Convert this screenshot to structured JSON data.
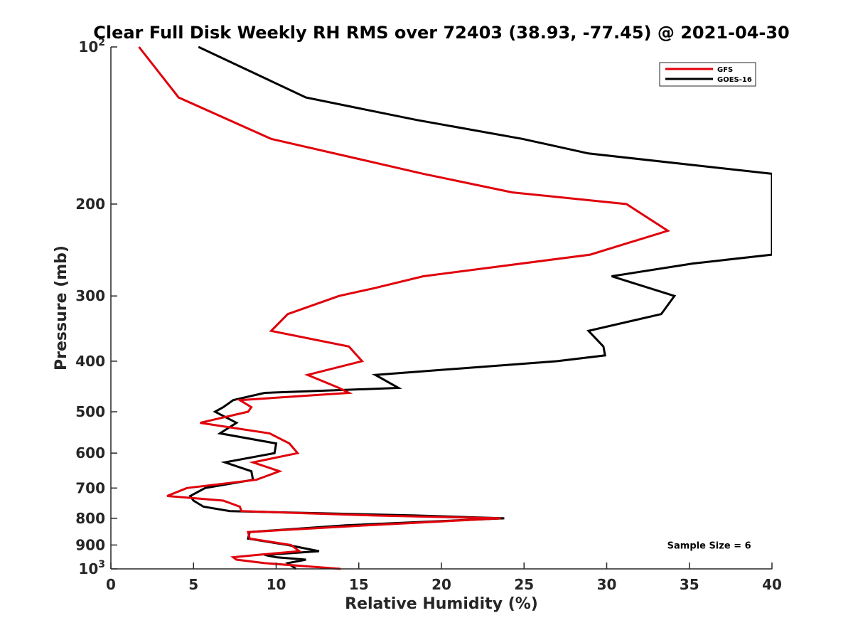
{
  "chart_data": {
    "type": "line",
    "title": "Clear Full Disk Weekly RH RMS over 72403 (38.93, -77.45) @ 2021-04-30",
    "xlabel": "Relative Humidity (%)",
    "ylabel": "Pressure (mb)",
    "xlim": [
      0,
      40
    ],
    "ylim": [
      100,
      1000
    ],
    "y_scale": "log",
    "y_reversed": true,
    "grid": false,
    "legend_position": "top-right",
    "x_ticks": [
      0,
      5,
      10,
      15,
      20,
      25,
      30,
      35,
      40
    ],
    "x_tick_labels": [
      "0",
      "5",
      "10",
      "15",
      "20",
      "25",
      "30",
      "35",
      "40"
    ],
    "y_ticks": [
      100,
      200,
      300,
      400,
      500,
      600,
      700,
      800,
      900,
      1000
    ],
    "y_tick_labels": [
      {
        "base": "10",
        "exp": "2"
      },
      {
        "base": "200",
        "exp": ""
      },
      {
        "base": "300",
        "exp": ""
      },
      {
        "base": "400",
        "exp": ""
      },
      {
        "base": "500",
        "exp": ""
      },
      {
        "base": "600",
        "exp": ""
      },
      {
        "base": "700",
        "exp": ""
      },
      {
        "base": "800",
        "exp": ""
      },
      {
        "base": "900",
        "exp": ""
      },
      {
        "base": "10",
        "exp": "3"
      }
    ],
    "series": [
      {
        "name": "GFS",
        "color": "#e0000b",
        "points": [
          [
            1.7,
            100
          ],
          [
            4.1,
            125
          ],
          [
            9.7,
            150
          ],
          [
            18.9,
            175
          ],
          [
            24.3,
            190
          ],
          [
            31.2,
            200
          ],
          [
            33.7,
            225
          ],
          [
            29.0,
            250
          ],
          [
            18.9,
            275
          ],
          [
            15.9,
            290
          ],
          [
            13.8,
            300
          ],
          [
            10.7,
            325
          ],
          [
            9.7,
            350
          ],
          [
            14.4,
            375
          ],
          [
            15.2,
            400
          ],
          [
            11.9,
            425
          ],
          [
            13.8,
            450
          ],
          [
            14.4,
            460
          ],
          [
            7.8,
            475
          ],
          [
            8.5,
            490
          ],
          [
            8.3,
            500
          ],
          [
            5.4,
            525
          ],
          [
            9.6,
            550
          ],
          [
            10.8,
            575
          ],
          [
            11.3,
            600
          ],
          [
            8.6,
            625
          ],
          [
            10.2,
            650
          ],
          [
            8.8,
            675
          ],
          [
            4.6,
            700
          ],
          [
            3.4,
            725
          ],
          [
            6.8,
            740
          ],
          [
            7.8,
            760
          ],
          [
            7.9,
            775
          ],
          [
            15.9,
            790
          ],
          [
            23.6,
            800
          ],
          [
            15.5,
            825
          ],
          [
            8.3,
            850
          ],
          [
            8.4,
            875
          ],
          [
            10.9,
            900
          ],
          [
            11.4,
            925
          ],
          [
            8.9,
            940
          ],
          [
            7.4,
            950
          ],
          [
            7.6,
            960
          ],
          [
            9.3,
            975
          ],
          [
            13.9,
            1000
          ]
        ]
      },
      {
        "name": "GOES-16",
        "color": "#000000",
        "points": [
          [
            5.3,
            100
          ],
          [
            11.8,
            125
          ],
          [
            18.5,
            138
          ],
          [
            24.9,
            150
          ],
          [
            28.9,
            160
          ],
          [
            40.0,
            175
          ],
          [
            40.0,
            250
          ],
          [
            35.2,
            260
          ],
          [
            30.3,
            275
          ],
          [
            34.1,
            300
          ],
          [
            33.3,
            325
          ],
          [
            28.9,
            350
          ],
          [
            29.8,
            375
          ],
          [
            29.9,
            390
          ],
          [
            27.0,
            400
          ],
          [
            16.0,
            425
          ],
          [
            17.4,
            450
          ],
          [
            9.3,
            460
          ],
          [
            7.4,
            475
          ],
          [
            6.8,
            490
          ],
          [
            6.3,
            500
          ],
          [
            7.6,
            525
          ],
          [
            6.6,
            550
          ],
          [
            10.0,
            575
          ],
          [
            9.9,
            600
          ],
          [
            6.9,
            625
          ],
          [
            8.5,
            650
          ],
          [
            8.6,
            675
          ],
          [
            5.7,
            700
          ],
          [
            4.8,
            725
          ],
          [
            5.0,
            740
          ],
          [
            5.6,
            760
          ],
          [
            7.2,
            775
          ],
          [
            18.4,
            790
          ],
          [
            23.8,
            800
          ],
          [
            14.2,
            825
          ],
          [
            8.4,
            850
          ],
          [
            8.3,
            875
          ],
          [
            10.7,
            900
          ],
          [
            12.6,
            925
          ],
          [
            9.3,
            940
          ],
          [
            10.0,
            950
          ],
          [
            11.8,
            960
          ],
          [
            10.7,
            975
          ],
          [
            11.2,
            1000
          ]
        ]
      }
    ],
    "annotations": [
      {
        "text": "Sample Size = 6",
        "x": 36.2,
        "y": 900
      }
    ]
  }
}
